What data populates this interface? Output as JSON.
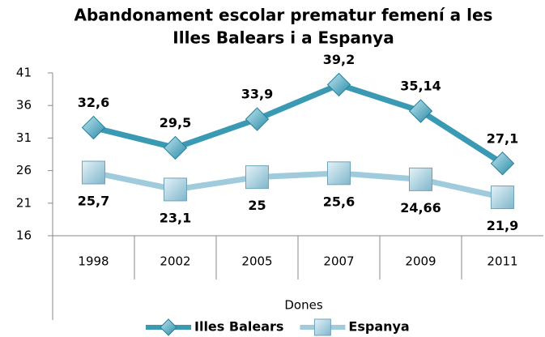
{
  "chart_data": {
    "type": "line",
    "title": [
      "Abandonament escolar prematur femení a les",
      "Illes Balears i a Espanya"
    ],
    "x_label": "Dones",
    "categories": [
      "1998",
      "2002",
      "2005",
      "2007",
      "2009",
      "2011"
    ],
    "series": [
      {
        "name": "Illes Balears",
        "color": "#3a9ab4",
        "marker": "diamond",
        "values": [
          32.6,
          29.5,
          33.9,
          39.2,
          35.14,
          27.1
        ],
        "value_labels": [
          "32,6",
          "29,5",
          "33,9",
          "39,2",
          "35,14",
          "27,1"
        ]
      },
      {
        "name": "Espanya",
        "color": "#9fcbdc",
        "marker": "square",
        "values": [
          25.7,
          23.1,
          25,
          25.6,
          24.66,
          21.9
        ],
        "value_labels": [
          "25,7",
          "23,1",
          "25",
          "25,6",
          "24,66",
          "21,9"
        ]
      }
    ],
    "ylim": [
      16,
      41
    ],
    "yticks": [
      16,
      21,
      26,
      31,
      36,
      41
    ],
    "legend": "bottom"
  }
}
